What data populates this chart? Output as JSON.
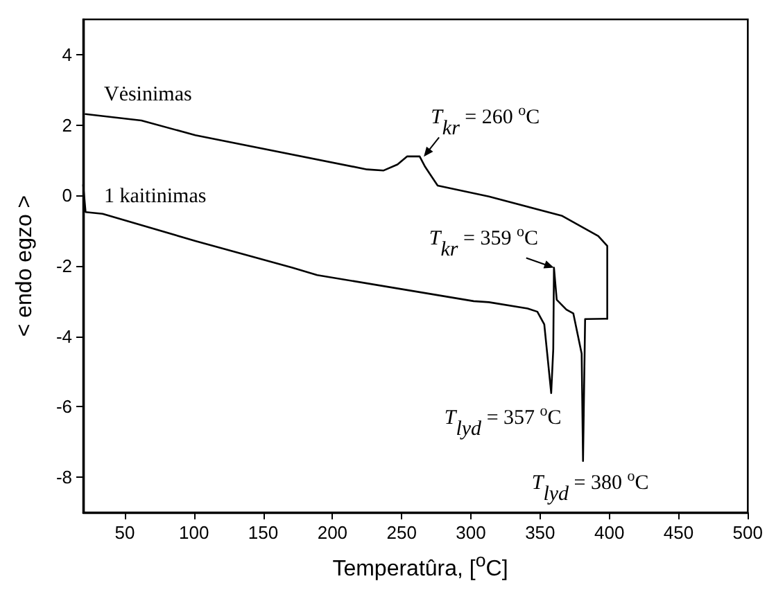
{
  "chart_data": {
    "type": "line",
    "xlabel": "Temperatûra, [$^{o}$C]",
    "ylabel": "< endo egzo >",
    "xlim": [
      20,
      500
    ],
    "xticks": [
      50,
      100,
      150,
      200,
      250,
      300,
      350,
      400,
      450,
      500
    ],
    "ylim": [
      -9,
      5
    ],
    "yticks": [
      -8,
      -6,
      -4,
      -2,
      0,
      2,
      4
    ],
    "grid": false,
    "marker": "none",
    "line_style": "solid",
    "series": [
      {
        "color": "#000000",
        "x": [
          20,
          21.7,
          34,
          101,
          171,
          189,
          302,
          313,
          341,
          348,
          353,
          358,
          359.5,
          360,
          362,
          369,
          374,
          380,
          381,
          382.5,
          398.5
        ],
        "values": [
          0.3,
          -0.47,
          -0.52,
          -1.29,
          -2.05,
          -2.26,
          -3.0,
          -3.03,
          -3.21,
          -3.3,
          -3.66,
          -5.61,
          -4.36,
          -2.05,
          -2.96,
          -3.24,
          -3.35,
          -4.49,
          -7.54,
          -3.51,
          -3.5
        ]
      },
      {
        "color": "#000000",
        "x": [
          398.5,
          398.5,
          392,
          366,
          313,
          276,
          267,
          263,
          254,
          247,
          237,
          225,
          101,
          62,
          21.7
        ],
        "values": [
          -3.5,
          -1.43,
          -1.15,
          -0.58,
          -0.03,
          0.28,
          0.81,
          1.11,
          1.11,
          0.88,
          0.71,
          0.74,
          1.71,
          2.13,
          2.31
        ]
      }
    ],
    "annotations": [
      {
        "text": "Vėsinimas",
        "x": 22,
        "y": 2.31
      },
      {
        "text": "1 kaitinimas",
        "x": 22,
        "y": -0.47
      },
      {
        "text": "T$_{kr}$ = 260 $^{o}$C",
        "x": 266,
        "y": 1.1
      },
      {
        "text": "T$_{kr}$ = 359 $^{o}$C",
        "x": 360,
        "y": -2.05
      },
      {
        "text": "T$_{lyd}$ = 357 $^{o}$C",
        "x": 358,
        "y": -5.61
      },
      {
        "text": "T$_{lyd}$ = 380 $^{o}$C",
        "x": 381,
        "y": -7.54
      }
    ]
  }
}
